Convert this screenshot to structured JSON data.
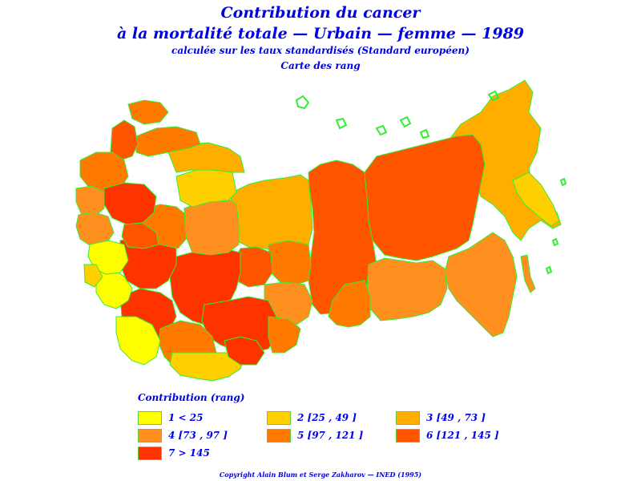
{
  "title": {
    "line1": "Contribution du cancer",
    "line2": "à la mortalité totale  —  Urbain  —  femme  —  1989",
    "line3": "calculée sur les taux standardisés (Standard européen)",
    "line4": "Carte des rang"
  },
  "legend": {
    "title": "Contribution  (rang)",
    "items": [
      {
        "label": "1  <  25",
        "color": "#ffff00"
      },
      {
        "label": "2  [25  ,  49  ]",
        "color": "#ffd000"
      },
      {
        "label": "3  [49  ,  73  ]",
        "color": "#ffae00"
      },
      {
        "label": "4  [73  ,  97  ]",
        "color": "#ff9020"
      },
      {
        "label": "5  [97  ,  121  ]",
        "color": "#ff7a00"
      },
      {
        "label": "6  [121  ,  145  ]",
        "color": "#ff5500"
      },
      {
        "label": "7  >  145",
        "color": "#ff3300"
      }
    ]
  },
  "map": {
    "border_color": "#33ee33"
  },
  "footer": {
    "copyright": "Copyright  Alain  Blum  et  Serge  Zakharov  —  INED  (1995)"
  }
}
